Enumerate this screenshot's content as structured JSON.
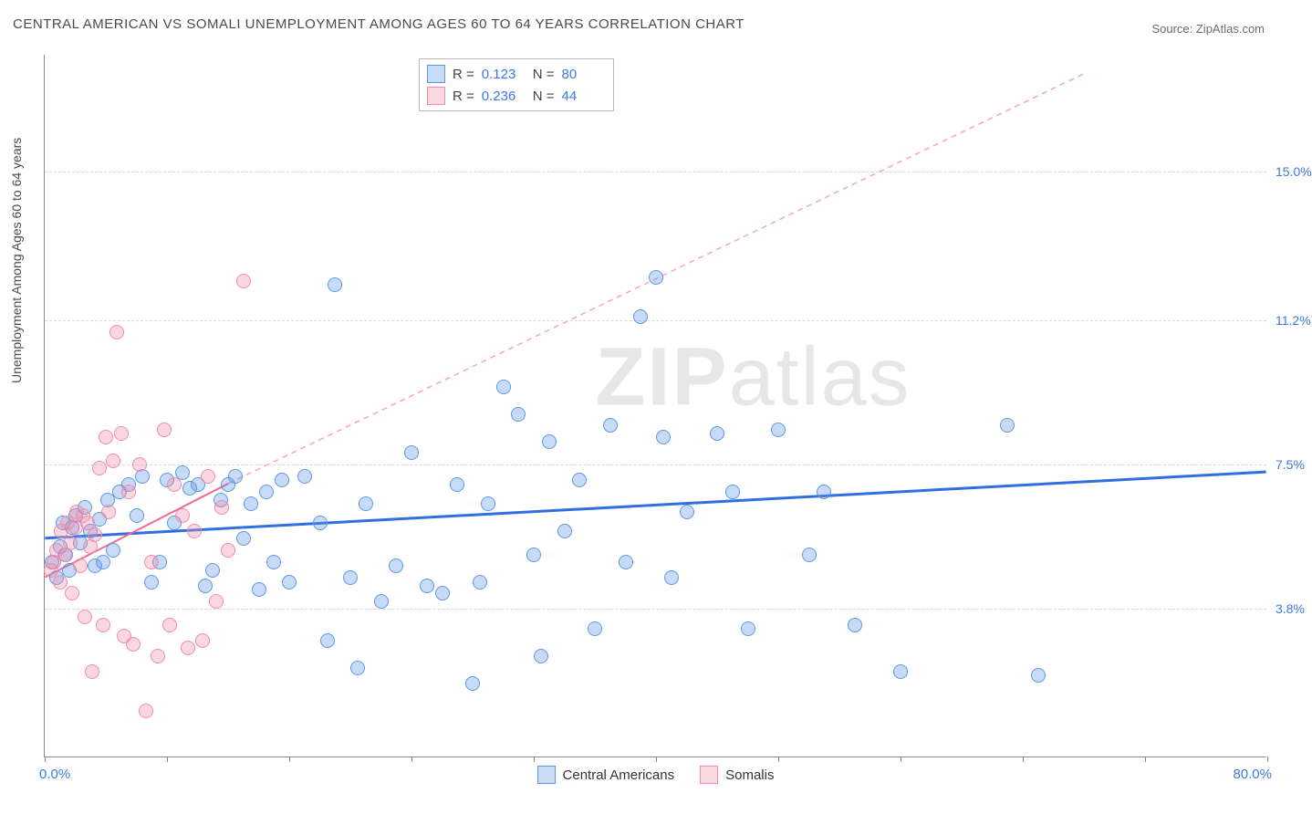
{
  "title": "CENTRAL AMERICAN VS SOMALI UNEMPLOYMENT AMONG AGES 60 TO 64 YEARS CORRELATION CHART",
  "source": "Source: ZipAtlas.com",
  "watermark_a": "ZIP",
  "watermark_b": "atlas",
  "ylabel": "Unemployment Among Ages 60 to 64 years",
  "chart": {
    "type": "scatter",
    "xlim": [
      0,
      80
    ],
    "ylim": [
      0,
      18
    ],
    "x_min_label": "0.0%",
    "x_max_label": "80.0%",
    "x_ticks": [
      0,
      8,
      16,
      24,
      32,
      40,
      48,
      56,
      64,
      72,
      80
    ],
    "y_gridlines": [
      {
        "value": 3.8,
        "label": "3.8%"
      },
      {
        "value": 7.5,
        "label": "7.5%"
      },
      {
        "value": 11.2,
        "label": "11.2%"
      },
      {
        "value": 15.0,
        "label": "15.0%"
      }
    ],
    "grid_color": "#d9d9d9",
    "axis_color": "#888888",
    "axis_label_color": "#3b78e7",
    "ytick_color": "#3b78e7",
    "background": "#ffffff",
    "marker_radius": 8,
    "series": [
      {
        "name": "Central Americans",
        "fill": "rgba(94,151,230,0.35)",
        "stroke": "#5e97e6",
        "R_label": "R  =",
        "R": "0.123",
        "N_label": "N  =",
        "N": "80",
        "trend": {
          "x1": 0,
          "y1": 5.6,
          "x2": 80,
          "y2": 7.3,
          "color": "#2f6fe0",
          "width": 3,
          "dash": "none"
        },
        "points": [
          [
            0.5,
            5.0
          ],
          [
            0.8,
            4.6
          ],
          [
            1.0,
            5.4
          ],
          [
            1.2,
            6.0
          ],
          [
            1.4,
            5.2
          ],
          [
            1.6,
            4.8
          ],
          [
            1.8,
            5.9
          ],
          [
            2.0,
            6.2
          ],
          [
            2.3,
            5.5
          ],
          [
            2.6,
            6.4
          ],
          [
            3.0,
            5.8
          ],
          [
            3.3,
            4.9
          ],
          [
            3.6,
            6.1
          ],
          [
            3.8,
            5.0
          ],
          [
            4.1,
            6.6
          ],
          [
            4.5,
            5.3
          ],
          [
            4.9,
            6.8
          ],
          [
            5.5,
            7.0
          ],
          [
            6.0,
            6.2
          ],
          [
            6.4,
            7.2
          ],
          [
            7.0,
            4.5
          ],
          [
            7.5,
            5.0
          ],
          [
            8.0,
            7.1
          ],
          [
            8.5,
            6.0
          ],
          [
            9.0,
            7.3
          ],
          [
            9.5,
            6.9
          ],
          [
            10.0,
            7.0
          ],
          [
            10.5,
            4.4
          ],
          [
            11.0,
            4.8
          ],
          [
            11.5,
            6.6
          ],
          [
            12.0,
            7.0
          ],
          [
            12.5,
            7.2
          ],
          [
            13.0,
            5.6
          ],
          [
            13.5,
            6.5
          ],
          [
            14.0,
            4.3
          ],
          [
            14.5,
            6.8
          ],
          [
            15.0,
            5.0
          ],
          [
            15.5,
            7.1
          ],
          [
            16.0,
            4.5
          ],
          [
            17.0,
            7.2
          ],
          [
            18.0,
            6.0
          ],
          [
            18.5,
            3.0
          ],
          [
            19.0,
            12.1
          ],
          [
            20.0,
            4.6
          ],
          [
            20.5,
            2.3
          ],
          [
            21.0,
            6.5
          ],
          [
            22.0,
            4.0
          ],
          [
            23.0,
            4.9
          ],
          [
            24.0,
            7.8
          ],
          [
            25.0,
            4.4
          ],
          [
            26.0,
            4.2
          ],
          [
            27.0,
            7.0
          ],
          [
            28.0,
            1.9
          ],
          [
            28.5,
            4.5
          ],
          [
            29.0,
            6.5
          ],
          [
            30.0,
            9.5
          ],
          [
            31.0,
            8.8
          ],
          [
            32.0,
            5.2
          ],
          [
            32.5,
            2.6
          ],
          [
            33.0,
            8.1
          ],
          [
            34.0,
            5.8
          ],
          [
            35.0,
            7.1
          ],
          [
            36.0,
            3.3
          ],
          [
            37.0,
            8.5
          ],
          [
            38.0,
            5.0
          ],
          [
            39.0,
            11.3
          ],
          [
            40.0,
            12.3
          ],
          [
            40.5,
            8.2
          ],
          [
            41.0,
            4.6
          ],
          [
            42.0,
            6.3
          ],
          [
            44.0,
            8.3
          ],
          [
            45.0,
            6.8
          ],
          [
            46.0,
            3.3
          ],
          [
            48.0,
            8.4
          ],
          [
            50.0,
            5.2
          ],
          [
            51.0,
            6.8
          ],
          [
            53.0,
            3.4
          ],
          [
            56.0,
            2.2
          ],
          [
            63.0,
            8.5
          ],
          [
            65.0,
            2.1
          ]
        ]
      },
      {
        "name": "Somalis",
        "fill": "rgba(240,140,170,0.35)",
        "stroke": "#f08caa",
        "R_label": "R  =",
        "R": "0.236",
        "N_label": "N  =",
        "N": "44",
        "trend": {
          "x1": 0,
          "y1": 4.6,
          "x2": 12,
          "y2": 7.0,
          "color": "#f06a94",
          "width": 2,
          "dash": "none"
        },
        "trend_ext": {
          "x1": 12,
          "y1": 7.0,
          "x2": 68,
          "y2": 17.5,
          "color": "#f5a6bd",
          "width": 1.5,
          "dash": "6,5"
        },
        "points": [
          [
            0.4,
            4.8
          ],
          [
            0.6,
            5.0
          ],
          [
            0.8,
            5.3
          ],
          [
            1.0,
            4.5
          ],
          [
            1.1,
            5.8
          ],
          [
            1.3,
            5.2
          ],
          [
            1.5,
            6.0
          ],
          [
            1.7,
            5.5
          ],
          [
            1.8,
            4.2
          ],
          [
            2.0,
            5.9
          ],
          [
            2.1,
            6.3
          ],
          [
            2.3,
            4.9
          ],
          [
            2.5,
            6.2
          ],
          [
            2.6,
            3.6
          ],
          [
            2.8,
            6.0
          ],
          [
            3.0,
            5.4
          ],
          [
            3.1,
            2.2
          ],
          [
            3.3,
            5.7
          ],
          [
            3.6,
            7.4
          ],
          [
            3.8,
            3.4
          ],
          [
            4.0,
            8.2
          ],
          [
            4.2,
            6.3
          ],
          [
            4.5,
            7.6
          ],
          [
            4.7,
            10.9
          ],
          [
            5.0,
            8.3
          ],
          [
            5.2,
            3.1
          ],
          [
            5.5,
            6.8
          ],
          [
            5.8,
            2.9
          ],
          [
            6.2,
            7.5
          ],
          [
            6.6,
            1.2
          ],
          [
            7.0,
            5.0
          ],
          [
            7.4,
            2.6
          ],
          [
            7.8,
            8.4
          ],
          [
            8.2,
            3.4
          ],
          [
            8.5,
            7.0
          ],
          [
            9.0,
            6.2
          ],
          [
            9.4,
            2.8
          ],
          [
            9.8,
            5.8
          ],
          [
            10.3,
            3.0
          ],
          [
            10.7,
            7.2
          ],
          [
            11.2,
            4.0
          ],
          [
            11.6,
            6.4
          ],
          [
            12.0,
            5.3
          ],
          [
            13.0,
            12.2
          ]
        ]
      }
    ],
    "legend_bottom": [
      {
        "label": "Central Americans",
        "fill": "rgba(94,151,230,0.35)",
        "stroke": "#5e97e6"
      },
      {
        "label": "Somalis",
        "fill": "rgba(240,140,170,0.35)",
        "stroke": "#f08caa"
      }
    ]
  }
}
